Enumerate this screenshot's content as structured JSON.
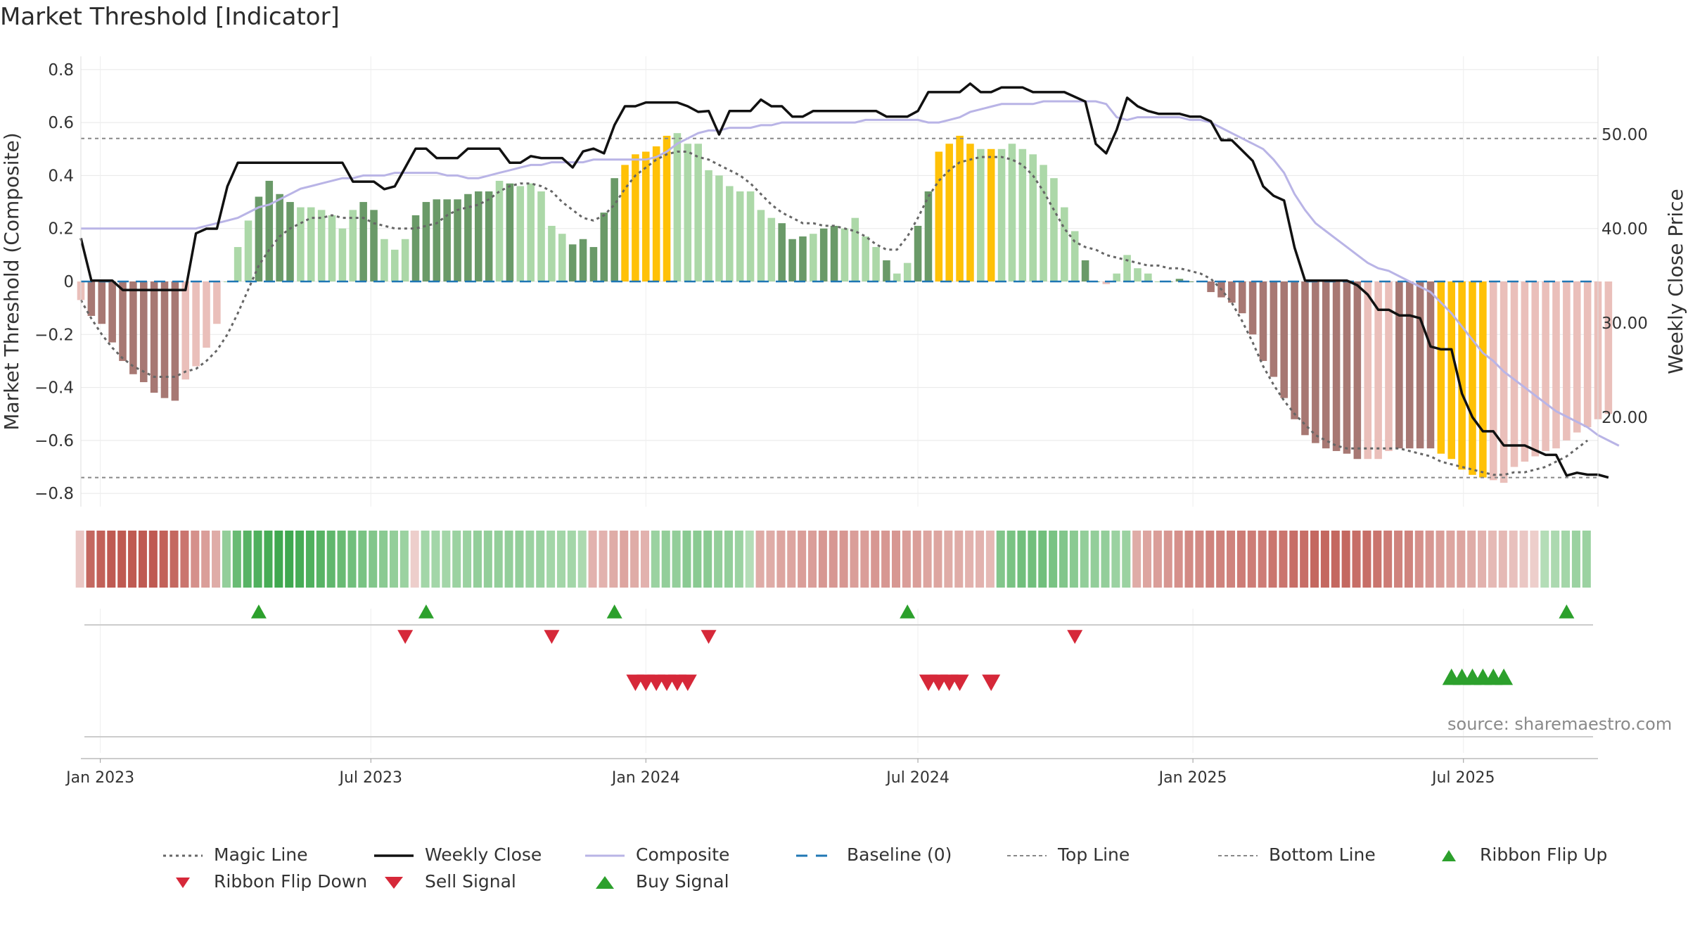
{
  "title": "Market Threshold [Indicator]",
  "source": "source: sharemaestro.com",
  "colors": {
    "strong_green": "#6a9a68",
    "light_green": "#acd8a8",
    "strong_red": "#a77873",
    "light_red": "#eabfba",
    "gold": "#ffc107",
    "composite": "#b9b4e6",
    "close": "#111111",
    "magic": "#666666",
    "baseline": "#1f77b4",
    "buy": "#2ca02c",
    "sell": "#d62839"
  },
  "chart_data": {
    "type": "bar",
    "x_range": [
      "2022-12-19",
      "2025-09-29"
    ],
    "x_ticks": [
      "2023-01-01",
      "2023-07-01",
      "2024-01-01",
      "2024-07-01",
      "2025-01-01",
      "2025-07-01"
    ],
    "x_tick_labels": [
      "Jan 2023",
      "Jul 2023",
      "Jan 2024",
      "Jul 2024",
      "Jan 2025",
      "Jul 2025"
    ],
    "y_left": {
      "label": "Market Threshold (Composite)",
      "range": [
        -0.85,
        0.85
      ],
      "ticks": [
        0.8,
        0.6,
        0.4,
        0.2,
        0,
        -0.2,
        -0.4,
        -0.6,
        -0.8
      ],
      "tick_labels": [
        "0.8",
        "0.6",
        "0.4",
        "0.2",
        "0",
        "−0.2",
        "−0.4",
        "−0.6",
        "−0.8"
      ]
    },
    "y_right": {
      "label": "Weekly Close Price",
      "range": [
        10.5,
        58.3
      ],
      "ticks": [
        50,
        40,
        30,
        20
      ],
      "tick_labels": [
        "50.00",
        "40.00",
        "30.00",
        "20.00"
      ]
    },
    "top_line": 0.54,
    "bottom_line": -0.74,
    "weeks_start": "2022-12-19",
    "bar_values": [
      -0.07,
      -0.13,
      -0.16,
      -0.23,
      -0.3,
      -0.35,
      -0.38,
      -0.42,
      -0.44,
      -0.45,
      -0.37,
      -0.32,
      -0.25,
      -0.16,
      0,
      0.13,
      0.23,
      0.32,
      0.38,
      0.33,
      0.3,
      0.28,
      0.28,
      0.27,
      0.25,
      0.2,
      0.27,
      0.3,
      0.27,
      0.16,
      0.12,
      0.16,
      0.25,
      0.3,
      0.31,
      0.31,
      0.31,
      0.33,
      0.34,
      0.34,
      0.38,
      0.37,
      0.36,
      0.37,
      0.34,
      0.21,
      0.18,
      0.14,
      0.16,
      0.13,
      0.26,
      0.39,
      0.44,
      0.48,
      0.49,
      0.51,
      0.55,
      0.56,
      0.52,
      0.52,
      0.42,
      0.4,
      0.36,
      0.34,
      0.34,
      0.27,
      0.24,
      0.22,
      0.16,
      0.17,
      0.18,
      0.2,
      0.21,
      0.2,
      0.24,
      0.17,
      0.13,
      0.08,
      0.03,
      0.07,
      0.21,
      0.34,
      0.49,
      0.52,
      0.55,
      0.52,
      0.5,
      0.5,
      0.5,
      0.52,
      0.5,
      0.48,
      0.44,
      0.39,
      0.28,
      0.19,
      0.08,
      0,
      -0.01,
      0.03,
      0.1,
      0.05,
      0.03,
      0,
      0,
      0.01,
      0,
      0,
      -0.04,
      -0.06,
      -0.08,
      -0.12,
      -0.2,
      -0.3,
      -0.36,
      -0.44,
      -0.52,
      -0.58,
      -0.61,
      -0.63,
      -0.64,
      -0.65,
      -0.67,
      -0.67,
      -0.67,
      -0.64,
      -0.63,
      -0.63,
      -0.63,
      -0.63,
      -0.65,
      -0.67,
      -0.71,
      -0.73,
      -0.74,
      -0.75,
      -0.76,
      -0.7,
      -0.68,
      -0.66,
      -0.64,
      -0.63,
      -0.6,
      -0.57,
      -0.55,
      -0.52,
      -0.5
    ],
    "bar_styles": "lssssssssslllllllssssllllllsslllsssssssslslllllsssssgggggllllllllllssslssllllsllssgggglgllllllllssllllllssssssssssssssssssslllssssgggggllllllll",
    "composite": [
      0.2,
      0.2,
      0.2,
      0.2,
      0.2,
      0.2,
      0.2,
      0.2,
      0.2,
      0.2,
      0.2,
      0.2,
      0.21,
      0.22,
      0.23,
      0.24,
      0.26,
      0.28,
      0.29,
      0.31,
      0.33,
      0.35,
      0.36,
      0.37,
      0.38,
      0.39,
      0.39,
      0.4,
      0.4,
      0.4,
      0.41,
      0.41,
      0.41,
      0.41,
      0.41,
      0.4,
      0.4,
      0.39,
      0.39,
      0.4,
      0.41,
      0.42,
      0.43,
      0.44,
      0.44,
      0.45,
      0.45,
      0.45,
      0.45,
      0.46,
      0.46,
      0.46,
      0.46,
      0.46,
      0.46,
      0.47,
      0.49,
      0.52,
      0.54,
      0.56,
      0.57,
      0.57,
      0.58,
      0.58,
      0.58,
      0.59,
      0.59,
      0.6,
      0.6,
      0.6,
      0.6,
      0.6,
      0.6,
      0.6,
      0.6,
      0.61,
      0.61,
      0.61,
      0.61,
      0.61,
      0.61,
      0.6,
      0.6,
      0.61,
      0.62,
      0.64,
      0.65,
      0.66,
      0.67,
      0.67,
      0.67,
      0.67,
      0.68,
      0.68,
      0.68,
      0.68,
      0.68,
      0.68,
      0.67,
      0.62,
      0.61,
      0.62,
      0.62,
      0.62,
      0.62,
      0.62,
      0.61,
      0.61,
      0.6,
      0.58,
      0.56,
      0.54,
      0.52,
      0.5,
      0.46,
      0.41,
      0.33,
      0.27,
      0.22,
      0.19,
      0.16,
      0.13,
      0.1,
      0.07,
      0.05,
      0.04,
      0.02,
      0,
      -0.02,
      -0.04,
      -0.08,
      -0.12,
      -0.17,
      -0.22,
      -0.27,
      -0.3,
      -0.34,
      -0.37,
      -0.4,
      -0.43,
      -0.46,
      -0.49,
      -0.51,
      -0.53,
      -0.55,
      -0.58,
      -0.6,
      -0.62
    ],
    "magic_line": [
      -0.07,
      -0.14,
      -0.2,
      -0.25,
      -0.29,
      -0.32,
      -0.34,
      -0.36,
      -0.36,
      -0.36,
      -0.34,
      -0.33,
      -0.3,
      -0.26,
      -0.2,
      -0.12,
      -0.03,
      0.06,
      0.12,
      0.17,
      0.2,
      0.22,
      0.24,
      0.24,
      0.25,
      0.24,
      0.24,
      0.24,
      0.22,
      0.21,
      0.2,
      0.2,
      0.2,
      0.21,
      0.22,
      0.25,
      0.27,
      0.28,
      0.29,
      0.31,
      0.34,
      0.36,
      0.37,
      0.37,
      0.36,
      0.34,
      0.3,
      0.27,
      0.24,
      0.23,
      0.25,
      0.29,
      0.35,
      0.4,
      0.43,
      0.46,
      0.48,
      0.49,
      0.49,
      0.47,
      0.46,
      0.44,
      0.42,
      0.4,
      0.37,
      0.33,
      0.29,
      0.26,
      0.24,
      0.22,
      0.22,
      0.21,
      0.21,
      0.2,
      0.19,
      0.17,
      0.14,
      0.12,
      0.12,
      0.17,
      0.24,
      0.32,
      0.38,
      0.42,
      0.45,
      0.46,
      0.47,
      0.47,
      0.47,
      0.46,
      0.44,
      0.4,
      0.34,
      0.27,
      0.2,
      0.15,
      0.13,
      0.12,
      0.1,
      0.09,
      0.08,
      0.07,
      0.06,
      0.06,
      0.05,
      0.05,
      0.04,
      0.03,
      0.01,
      -0.03,
      -0.08,
      -0.15,
      -0.23,
      -0.32,
      -0.39,
      -0.45,
      -0.5,
      -0.54,
      -0.58,
      -0.6,
      -0.62,
      -0.63,
      -0.63,
      -0.63,
      -0.63,
      -0.63,
      -0.63,
      -0.64,
      -0.65,
      -0.66,
      -0.68,
      -0.69,
      -0.7,
      -0.71,
      -0.72,
      -0.73,
      -0.73,
      -0.72,
      -0.72,
      -0.71,
      -0.7,
      -0.68,
      -0.66,
      -0.63,
      -0.6
    ],
    "weekly_close": [
      39.0,
      34.5,
      34.5,
      34.5,
      33.5,
      33.5,
      33.5,
      33.5,
      33.5,
      33.5,
      33.5,
      39.5,
      40.0,
      40.0,
      44.5,
      47.0,
      47.0,
      47.0,
      47.0,
      47.0,
      47.0,
      47.0,
      47.0,
      47.0,
      47.0,
      47.0,
      45.0,
      45.0,
      45.0,
      44.2,
      44.5,
      46.5,
      48.5,
      48.5,
      47.5,
      47.5,
      47.5,
      48.5,
      48.5,
      48.5,
      48.5,
      47.0,
      47.0,
      47.7,
      47.5,
      47.5,
      47.5,
      46.5,
      48.2,
      48.5,
      48.0,
      51.0,
      53.0,
      53.0,
      53.4,
      53.4,
      53.4,
      53.4,
      53.0,
      52.4,
      52.5,
      50.0,
      52.5,
      52.5,
      52.5,
      53.7,
      53.0,
      53.0,
      51.9,
      51.9,
      52.5,
      52.5,
      52.5,
      52.5,
      52.5,
      52.5,
      52.5,
      51.9,
      51.9,
      51.9,
      52.5,
      54.5,
      54.5,
      54.5,
      54.5,
      55.4,
      54.5,
      54.5,
      55.0,
      55.0,
      55.0,
      54.5,
      54.5,
      54.5,
      54.5,
      54.0,
      53.5,
      49.0,
      48.0,
      50.5,
      53.9,
      53.0,
      52.5,
      52.2,
      52.2,
      52.2,
      51.9,
      51.9,
      51.4,
      49.4,
      49.4,
      48.3,
      47.2,
      44.5,
      43.5,
      43.0,
      38.0,
      34.5,
      34.5,
      34.5,
      34.5,
      34.5,
      34.0,
      33.0,
      31.4,
      31.4,
      30.8,
      30.8,
      30.5,
      27.5,
      27.2,
      27.2,
      22.5,
      20.0,
      18.5,
      18.5,
      17.0,
      17.0,
      17.0,
      16.5,
      16.0,
      16.0,
      13.8,
      14.1,
      13.9,
      13.9,
      13.6
    ],
    "ribbon_levels": [
      -0.2,
      -0.9,
      -0.95,
      -1,
      -1,
      -1,
      -1,
      -1,
      -0.95,
      -0.9,
      -0.8,
      -0.6,
      -0.5,
      -0.4,
      0.5,
      0.75,
      0.85,
      0.9,
      0.95,
      1,
      1,
      0.95,
      0.9,
      0.85,
      0.8,
      0.75,
      0.7,
      0.65,
      0.6,
      0.55,
      0.5,
      0.45,
      -0.15,
      0.4,
      0.4,
      0.4,
      0.45,
      0.45,
      0.5,
      0.5,
      0.5,
      0.5,
      0.5,
      0.45,
      0.45,
      0.4,
      0.4,
      0.4,
      0.35,
      -0.35,
      -0.35,
      -0.4,
      -0.45,
      -0.4,
      -0.35,
      0.45,
      0.5,
      0.5,
      0.55,
      0.55,
      0.55,
      0.5,
      0.5,
      0.45,
      0.3,
      -0.4,
      -0.4,
      -0.45,
      -0.45,
      -0.5,
      -0.5,
      -0.55,
      -0.55,
      -0.55,
      -0.5,
      -0.5,
      -0.55,
      -0.55,
      -0.55,
      -0.5,
      -0.5,
      -0.45,
      -0.45,
      -0.4,
      -0.4,
      -0.35,
      -0.35,
      -0.3,
      0.6,
      0.65,
      0.7,
      0.7,
      0.7,
      0.65,
      0.6,
      0.55,
      0.5,
      0.5,
      0.5,
      0.45,
      0.45,
      -0.4,
      -0.45,
      -0.5,
      -0.55,
      -0.6,
      -0.65,
      -0.65,
      -0.7,
      -0.7,
      -0.7,
      -0.75,
      -0.75,
      -0.75,
      -0.8,
      -0.8,
      -0.85,
      -0.85,
      -0.9,
      -0.9,
      -0.9,
      -0.9,
      -0.85,
      -0.85,
      -0.8,
      -0.75,
      -0.7,
      -0.7,
      -0.6,
      -0.55,
      -0.5,
      -0.45,
      -0.45,
      -0.4,
      -0.35,
      -0.3,
      -0.3,
      -0.25,
      -0.2,
      -0.15,
      0.3,
      0.35,
      0.4,
      0.45,
      0.45
    ],
    "markers": {
      "ribbon_flip_up": [
        "2023-04-17",
        "2023-08-07",
        "2023-12-11",
        "2024-06-24",
        "2025-09-08"
      ],
      "ribbon_flip_down": [
        "2023-07-24",
        "2023-10-30",
        "2024-02-12",
        "2024-10-14"
      ],
      "sell_signal": [
        "2023-12-25",
        "2024-01-01",
        "2024-01-08",
        "2024-01-15",
        "2024-01-22",
        "2024-01-29",
        "2024-07-08",
        "2024-07-15",
        "2024-07-22",
        "2024-07-29",
        "2024-08-19"
      ],
      "buy_signal": [
        "2025-06-23",
        "2025-06-30",
        "2025-07-07",
        "2025-07-14",
        "2025-07-21",
        "2025-07-28"
      ]
    },
    "legend": [
      {
        "key": "magic",
        "label": "Magic Line"
      },
      {
        "key": "close",
        "label": "Weekly Close"
      },
      {
        "key": "composite",
        "label": "Composite"
      },
      {
        "key": "baseline",
        "label": "Baseline (0)"
      },
      {
        "key": "top",
        "label": "Top Line"
      },
      {
        "key": "bottom",
        "label": "Bottom Line"
      },
      {
        "key": "flip_up",
        "label": "Ribbon Flip Up"
      },
      {
        "key": "flip_down",
        "label": "Ribbon Flip Down"
      },
      {
        "key": "sell",
        "label": "Sell Signal"
      },
      {
        "key": "buy",
        "label": "Buy Signal"
      }
    ]
  }
}
